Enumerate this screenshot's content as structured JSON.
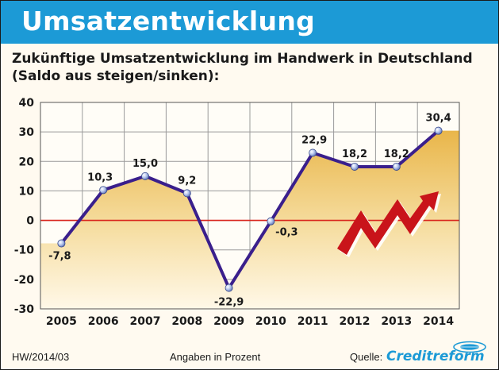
{
  "header": {
    "title": "Umsatzentwicklung"
  },
  "subtitle": {
    "line1": "Zukünftige Umsatzentwicklung im Handwerk in Deutschland",
    "line2": "(Saldo aus steigen/sinken):"
  },
  "footer": {
    "left": "HW/2014/03",
    "center": "Angaben in Prozent",
    "source_label": "Quelle:",
    "logo_text": "Creditreform"
  },
  "colors": {
    "header": "#1c9ad6",
    "line": "#3a1f8c",
    "zero_line": "#d9241b",
    "area_top": "#e9b64a",
    "area_bottom": "#fff5dc",
    "arrow": "#c9141a"
  },
  "chart_data": {
    "type": "line",
    "x": [
      "2005",
      "2006",
      "2007",
      "2008",
      "2009",
      "2010",
      "2011",
      "2012",
      "2013",
      "2014"
    ],
    "series": [
      {
        "values": [
          -7.8,
          10.3,
          15.0,
          9.2,
          -22.9,
          -0.3,
          22.9,
          18.2,
          18.2,
          30.4
        ]
      }
    ],
    "data_labels": [
      "-7,8",
      "10,3",
      "15,0",
      "9,2",
      "-22,9",
      "-0,3",
      "22,9",
      "18,2",
      "18,2",
      "30,4"
    ],
    "y_ticks": [
      "40",
      "30",
      "20",
      "10",
      "0",
      "-10",
      "-20",
      "-30"
    ],
    "ylim": [
      -30,
      40
    ],
    "grid": true,
    "xlabel": "",
    "ylabel": ""
  }
}
